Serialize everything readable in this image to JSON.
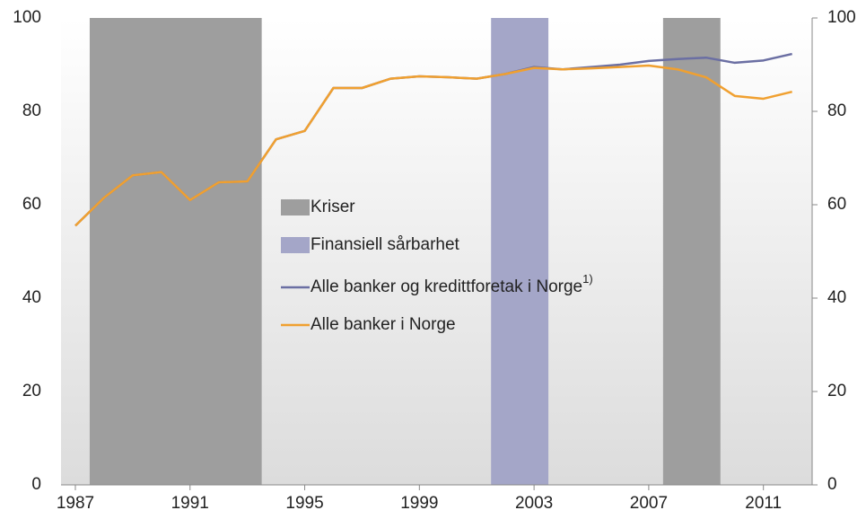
{
  "chart_data": {
    "type": "line",
    "x": [
      1987,
      1988,
      1989,
      1990,
      1991,
      1992,
      1993,
      1994,
      1995,
      1996,
      1997,
      1998,
      1999,
      2000,
      2001,
      2002,
      2003,
      2004,
      2005,
      2006,
      2007,
      2008,
      2009,
      2010,
      2011,
      2012
    ],
    "series": [
      {
        "name": "Alle banker og kredittforetak i Norge",
        "name_superscript": "1)",
        "color": "#6b6fa3",
        "values": [
          55.5,
          61.5,
          66.3,
          67,
          61,
          64.8,
          65,
          74,
          75.8,
          85,
          85,
          87,
          87.5,
          87.3,
          87,
          88,
          89.5,
          89,
          89.5,
          90,
          90.8,
          91.2,
          91.5,
          90.4,
          90.9,
          92.3
        ]
      },
      {
        "name": "Alle banker i Norge",
        "color": "#f0a030",
        "values": [
          55.5,
          61.5,
          66.3,
          67,
          61,
          64.8,
          65,
          74,
          75.8,
          85,
          85,
          87,
          87.5,
          87.3,
          87,
          88,
          89.3,
          89,
          89.2,
          89.5,
          89.8,
          89,
          87.3,
          83.3,
          82.7,
          84.2
        ]
      }
    ],
    "shaded_regions": [
      {
        "name": "Kriser",
        "color": "#9e9e9e",
        "spans": [
          [
            1987.5,
            1993.5
          ],
          [
            2007.5,
            2009.5
          ]
        ]
      },
      {
        "name": "Finansiell sårbarhet",
        "color": "#a4a6c8",
        "spans": [
          [
            2001.5,
            2003.5
          ]
        ]
      }
    ],
    "xlim": [
      1986.5,
      2012.7
    ],
    "xticks": [
      1987,
      1991,
      1995,
      1999,
      2003,
      2007,
      2011
    ],
    "ylim": [
      0,
      100
    ],
    "yticks": [
      0,
      20,
      40,
      60,
      80,
      100
    ],
    "y2lim": [
      0,
      100
    ],
    "y2ticks": [
      0,
      20,
      40,
      60,
      80,
      100
    ]
  }
}
